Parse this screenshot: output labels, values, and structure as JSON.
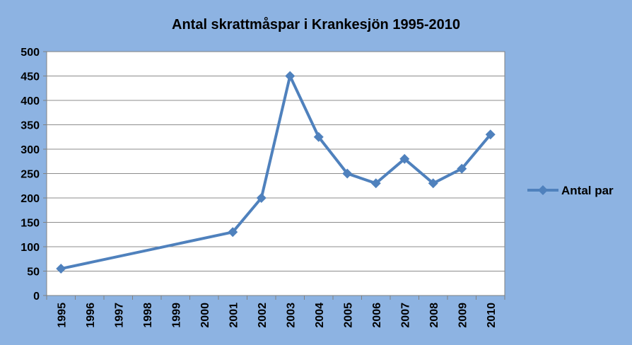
{
  "colors": {
    "background": "#8DB3E2",
    "plot_area": "#FFFFFF",
    "gridline": "#8C8C8C",
    "axis": "#808080",
    "series": "#4F81BD"
  },
  "chart_data": {
    "type": "line",
    "title": "Antal skrattmåspar i Krankesjön 1995-2010",
    "xlabel": "",
    "ylabel": "",
    "categories": [
      "1995",
      "1996",
      "1997",
      "1998",
      "1999",
      "2000",
      "2001",
      "2002",
      "2003",
      "2004",
      "2005",
      "2006",
      "2007",
      "2008",
      "2009",
      "2010"
    ],
    "series": [
      {
        "name": "Antal par",
        "marker": "diamond",
        "values": [
          55,
          null,
          null,
          null,
          null,
          null,
          130,
          200,
          450,
          325,
          250,
          230,
          280,
          230,
          260,
          330
        ]
      }
    ],
    "ylim": [
      0,
      500
    ],
    "yticks": [
      0,
      50,
      100,
      150,
      200,
      250,
      300,
      350,
      400,
      450,
      500
    ],
    "grid": "horizontal",
    "legend_position": "right",
    "gaps": "span"
  }
}
